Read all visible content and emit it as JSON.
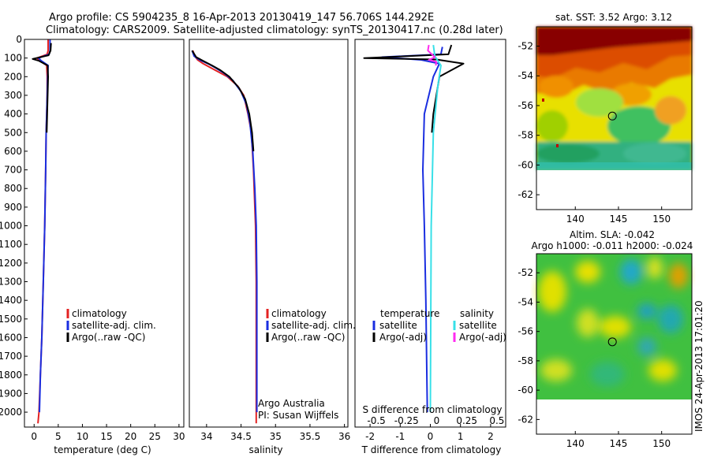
{
  "figure": {
    "title_line1": "Argo profile: CS 5904235_8 16-Apr-2013 20130419_147 56.706S 144.292E",
    "title_line2": "Climatology: CARS2009. Satellite-adjusted climatology: synTS_20130417.nc (0.28d later)",
    "side_note": "IMOS 24-Apr-2013 17:01:20",
    "credit_line1": "Argo Australia",
    "credit_line2": "PI: Susan Wijffels"
  },
  "colors": {
    "climatology": "#e32222",
    "satellite_adj": "#1a2ee0",
    "argo": "#000000",
    "salinity_satellite": "#38e0e8",
    "salinity_argo": "#ff2af0"
  },
  "chart_data": [
    {
      "type": "line",
      "panel": "temperature",
      "xlabel": "temperature (deg C)",
      "xlim": [
        -2,
        31
      ],
      "xticks": [
        0,
        5,
        10,
        15,
        20,
        25,
        30
      ],
      "ylim": [
        2080,
        0
      ],
      "yticks": [
        0,
        100,
        200,
        300,
        400,
        500,
        600,
        700,
        800,
        900,
        1000,
        1100,
        1200,
        1300,
        1400,
        1500,
        1600,
        1700,
        1800,
        1900,
        2000
      ],
      "legend": [
        "climatology",
        "satellite-adj. clim.",
        "Argo(..raw -QC)"
      ],
      "series": [
        {
          "name": "climatology",
          "color_key": "climatology",
          "points": [
            [
              2.9,
              0
            ],
            [
              2.9,
              60
            ],
            [
              2.7,
              80
            ],
            [
              0.6,
              100
            ],
            [
              1.2,
              115
            ],
            [
              2.6,
              140
            ],
            [
              2.7,
              200
            ],
            [
              2.7,
              300
            ],
            [
              2.6,
              400
            ],
            [
              2.5,
              500
            ],
            [
              2.4,
              700
            ],
            [
              2.2,
              1000
            ],
            [
              1.9,
              1300
            ],
            [
              1.6,
              1600
            ],
            [
              1.3,
              1800
            ],
            [
              1.0,
              2000
            ],
            [
              0.8,
              2060
            ]
          ]
        },
        {
          "name": "satellite-adj. clim.",
          "color_key": "satellite_adj",
          "points": [
            [
              3.3,
              0
            ],
            [
              3.3,
              60
            ],
            [
              3.1,
              80
            ],
            [
              0.9,
              100
            ],
            [
              1.5,
              115
            ],
            [
              2.9,
              140
            ],
            [
              2.8,
              200
            ],
            [
              2.7,
              300
            ],
            [
              2.6,
              400
            ],
            [
              2.5,
              500
            ],
            [
              2.4,
              700
            ],
            [
              2.2,
              1000
            ],
            [
              1.9,
              1300
            ],
            [
              1.6,
              1600
            ],
            [
              1.3,
              1800
            ],
            [
              1.1,
              2000
            ]
          ]
        },
        {
          "name": "Argo(..raw -QC)",
          "color_key": "argo",
          "points": [
            [
              3.5,
              20
            ],
            [
              3.4,
              60
            ],
            [
              3.0,
              85
            ],
            [
              -0.3,
              105
            ],
            [
              1.0,
              115
            ],
            [
              2.8,
              140
            ],
            [
              2.9,
              200
            ],
            [
              2.8,
              300
            ],
            [
              2.7,
              400
            ],
            [
              2.6,
              500
            ]
          ]
        }
      ]
    },
    {
      "type": "line",
      "panel": "salinity",
      "xlabel": "salinity",
      "xlim": [
        33.75,
        36.05
      ],
      "xticks": [
        34,
        34.5,
        35,
        35.5,
        36
      ],
      "ylim": [
        2080,
        0
      ],
      "legend": [
        "climatology",
        "satellite-adj. clim.",
        "Argo(..raw -QC)"
      ],
      "series": [
        {
          "name": "climatology",
          "color_key": "climatology",
          "points": [
            [
              33.8,
              60
            ],
            [
              33.83,
              90
            ],
            [
              33.87,
              110
            ],
            [
              33.95,
              130
            ],
            [
              34.05,
              150
            ],
            [
              34.15,
              170
            ],
            [
              34.3,
              200
            ],
            [
              34.45,
              250
            ],
            [
              34.54,
              300
            ],
            [
              34.6,
              400
            ],
            [
              34.65,
              500
            ],
            [
              34.68,
              700
            ],
            [
              34.71,
              1000
            ],
            [
              34.72,
              1300
            ],
            [
              34.72,
              1600
            ],
            [
              34.72,
              2000
            ],
            [
              34.72,
              2060
            ]
          ]
        },
        {
          "name": "satellite-adj. clim.",
          "color_key": "satellite_adj",
          "points": [
            [
              33.79,
              60
            ],
            [
              33.82,
              90
            ],
            [
              33.9,
              110
            ],
            [
              34.02,
              130
            ],
            [
              34.12,
              150
            ],
            [
              34.25,
              180
            ],
            [
              34.38,
              220
            ],
            [
              34.5,
              280
            ],
            [
              34.58,
              350
            ],
            [
              34.63,
              450
            ],
            [
              34.67,
              600
            ],
            [
              34.7,
              800
            ],
            [
              34.72,
              1000
            ],
            [
              34.73,
              1300
            ],
            [
              34.73,
              1600
            ],
            [
              34.73,
              2000
            ]
          ]
        },
        {
          "name": "Argo(..raw -QC)",
          "color_key": "argo",
          "points": [
            [
              33.79,
              60
            ],
            [
              33.85,
              95
            ],
            [
              33.95,
              115
            ],
            [
              34.08,
              140
            ],
            [
              34.2,
              165
            ],
            [
              34.33,
              200
            ],
            [
              34.47,
              260
            ],
            [
              34.56,
              320
            ],
            [
              34.62,
              400
            ],
            [
              34.66,
              500
            ],
            [
              34.68,
              600
            ]
          ]
        }
      ]
    },
    {
      "type": "line",
      "panel": "differences",
      "xlabel": "T difference from climatology",
      "xlabel_top": "S difference from climatology",
      "xlim": [
        -2.5,
        2.5
      ],
      "xticks": [
        -2,
        -1,
        0,
        1,
        2
      ],
      "xticks_top": [
        -0.5,
        -0.25,
        0,
        0.25,
        0.5
      ],
      "ylim": [
        2080,
        0
      ],
      "legend_left_title": "temperature",
      "legend_right_title": "salinity",
      "legend": [
        "satellite",
        "Argo(-adj)",
        "satellite",
        "Argo(-adj)"
      ],
      "series": [
        {
          "name": "temperature satellite",
          "color_key": "satellite_adj",
          "points": [
            [
              0.4,
              40
            ],
            [
              0.35,
              80
            ],
            [
              -1.6,
              95
            ],
            [
              -0.3,
              110
            ],
            [
              0.3,
              130
            ],
            [
              0.1,
              200
            ],
            [
              -0.2,
              400
            ],
            [
              -0.25,
              700
            ],
            [
              -0.2,
              1000
            ],
            [
              -0.15,
              1400
            ],
            [
              -0.1,
              2000
            ]
          ]
        },
        {
          "name": "temperature Argo(-adj)",
          "color_key": "argo",
          "points": [
            [
              0.7,
              30
            ],
            [
              0.6,
              80
            ],
            [
              -2.2,
              100
            ],
            [
              0.2,
              108
            ],
            [
              1.1,
              130
            ],
            [
              0.3,
              200
            ],
            [
              0.1,
              400
            ],
            [
              0.05,
              500
            ]
          ]
        },
        {
          "name": "salinity satellite",
          "color_key": "salinity_satellite",
          "points": [
            [
              0.1,
              30
            ],
            [
              0.15,
              90
            ],
            [
              0.35,
              140
            ],
            [
              0.25,
              250
            ],
            [
              0.1,
              500
            ],
            [
              0.03,
              1000
            ],
            [
              0.0,
              2000
            ]
          ]
        },
        {
          "name": "salinity Argo(-adj)",
          "color_key": "salinity_argo",
          "points": [
            [
              -0.05,
              30
            ],
            [
              -0.08,
              60
            ],
            [
              0.15,
              95
            ],
            [
              -0.05,
              110
            ],
            [
              0.2,
              120
            ],
            [
              0.18,
              140
            ]
          ]
        }
      ]
    },
    {
      "type": "heatmap",
      "panel": "sst_map",
      "title": "sat. SST: 3.52 Argo: 3.12",
      "xlim": [
        135.5,
        153.5
      ],
      "xticks": [
        140,
        145,
        150
      ],
      "ylim": [
        -63,
        -50.7
      ],
      "yticks": [
        -52,
        -54,
        -56,
        -58,
        -60,
        -62
      ],
      "data_extent": [
        -60,
        -50.7
      ],
      "argo_position": [
        144.292,
        -56.706
      ],
      "colormap": "jet"
    },
    {
      "type": "heatmap",
      "panel": "sla_map",
      "title_line1": "Altim. SLA: -0.042",
      "title_line2": "Argo h1000: -0.011 h2000: -0.024",
      "xlim": [
        135.5,
        153.5
      ],
      "xticks": [
        140,
        145,
        150
      ],
      "ylim": [
        -63,
        -50.7
      ],
      "yticks": [
        -52,
        -54,
        -56,
        -58,
        -60,
        -62
      ],
      "data_extent": [
        -60,
        -50.7
      ],
      "argo_position": [
        144.292,
        -56.706
      ],
      "colormap": "jet"
    }
  ]
}
